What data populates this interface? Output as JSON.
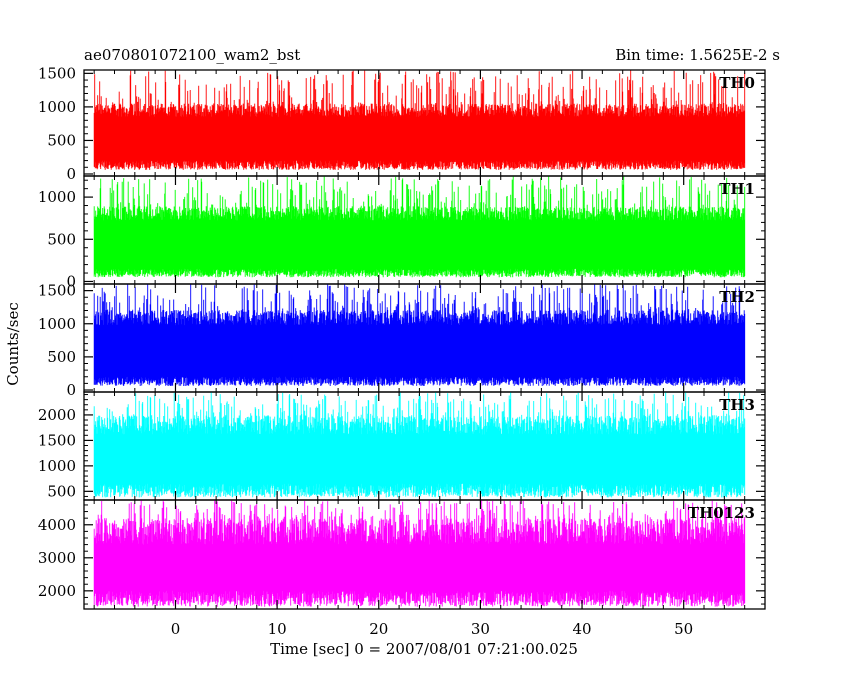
{
  "header": {
    "title": "ae070801072100_wam2_bst",
    "bin_time": "Bin time: 1.5625E-2 s"
  },
  "chart_data": {
    "type": "line",
    "title": "ae070801072100_wam2_bst",
    "xlabel": "Time [sec] 0 = 2007/08/01 07:21:00.025",
    "ylabel": "Counts/sec",
    "xlim": [
      -9,
      58
    ],
    "x_data_range": [
      -8,
      56
    ],
    "x_ticks": [
      0,
      10,
      20,
      30,
      40,
      50
    ],
    "x_tick_labels": [
      "0",
      "10",
      "20",
      "30",
      "40",
      "50"
    ],
    "grid": false,
    "panels": [
      {
        "name": "TH0",
        "color": "#ff0000",
        "ylim": [
          -30,
          1550
        ],
        "y_ticks": [
          0,
          500,
          1000,
          1500
        ],
        "y_tick_labels": [
          "0",
          "500",
          "1000",
          "1500"
        ],
        "approx_low": 200,
        "approx_high": 1000,
        "approx_min": 60,
        "approx_max": 1550
      },
      {
        "name": "TH1",
        "color": "#00ff00",
        "ylim": [
          -30,
          1250
        ],
        "y_ticks": [
          0,
          500,
          1000
        ],
        "y_tick_labels": [
          "0",
          "500",
          "1000"
        ],
        "approx_low": 150,
        "approx_high": 850,
        "approx_min": 50,
        "approx_max": 1250
      },
      {
        "name": "TH2",
        "color": "#0000ff",
        "ylim": [
          -30,
          1600
        ],
        "y_ticks": [
          0,
          500,
          1000,
          1500
        ],
        "y_tick_labels": [
          "0",
          "500",
          "1000",
          "1500"
        ],
        "approx_low": 200,
        "approx_high": 1150,
        "approx_min": 60,
        "approx_max": 1600
      },
      {
        "name": "TH3",
        "color": "#00ffff",
        "ylim": [
          330,
          2450
        ],
        "y_ticks": [
          500,
          1000,
          1500,
          2000
        ],
        "y_tick_labels": [
          "500",
          "1000",
          "1500",
          "2000"
        ],
        "approx_low": 650,
        "approx_high": 1900,
        "approx_min": 380,
        "approx_max": 2450
      },
      {
        "name": "TH0123",
        "color": "#ff00ff",
        "ylim": [
          1450,
          4750
        ],
        "y_ticks": [
          2000,
          3000,
          4000
        ],
        "y_tick_labels": [
          "2000",
          "3000",
          "4000"
        ],
        "approx_low": 2000,
        "approx_high": 4000,
        "approx_min": 1520,
        "approx_max": 4750
      }
    ]
  }
}
